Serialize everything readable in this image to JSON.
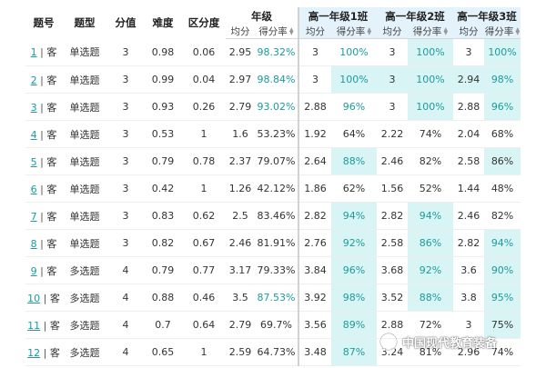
{
  "header": {
    "question_no": "题号",
    "question_type": "题型",
    "score": "分值",
    "difficulty": "难度",
    "discrimination": "区分度",
    "grade": "年级",
    "class1": "高一年级1班",
    "class2": "高一年级2班",
    "class3": "高一年级3班",
    "avg": "均分",
    "rate": "得分率"
  },
  "rows": [
    {
      "no": "1",
      "tag": "客",
      "type": "单选题",
      "score": "3",
      "difficulty": "0.98",
      "disc": "0.06",
      "g_avg": "2.95",
      "g_rate": "98.32%",
      "c1_avg": "3",
      "c1_rate": "100%",
      "c2_avg": "3",
      "c2_rate": "100%",
      "c3_avg": "3",
      "c3_rate": "100%"
    },
    {
      "no": "2",
      "tag": "客",
      "type": "单选题",
      "score": "3",
      "difficulty": "0.99",
      "disc": "0.04",
      "g_avg": "2.97",
      "g_rate": "98.84%",
      "c1_avg": "3",
      "c1_rate": "100%",
      "c2_avg": "3",
      "c2_rate": "100%",
      "c3_avg": "2.94",
      "c3_rate": "98%"
    },
    {
      "no": "3",
      "tag": "客",
      "type": "单选题",
      "score": "3",
      "difficulty": "0.93",
      "disc": "0.26",
      "g_avg": "2.79",
      "g_rate": "93.02%",
      "c1_avg": "2.88",
      "c1_rate": "96%",
      "c2_avg": "3",
      "c2_rate": "100%",
      "c3_avg": "2.88",
      "c3_rate": "96%"
    },
    {
      "no": "4",
      "tag": "客",
      "type": "单选题",
      "score": "3",
      "difficulty": "0.53",
      "disc": "1",
      "g_avg": "1.6",
      "g_rate": "53.23%",
      "c1_avg": "1.92",
      "c1_rate": "64%",
      "c2_avg": "2.22",
      "c2_rate": "74%",
      "c3_avg": "2.04",
      "c3_rate": "68%"
    },
    {
      "no": "5",
      "tag": "客",
      "type": "单选题",
      "score": "3",
      "difficulty": "0.79",
      "disc": "0.78",
      "g_avg": "2.37",
      "g_rate": "79.07%",
      "c1_avg": "2.64",
      "c1_rate": "88%",
      "c2_avg": "2.46",
      "c2_rate": "82%",
      "c3_avg": "2.58",
      "c3_rate": "86%"
    },
    {
      "no": "6",
      "tag": "客",
      "type": "单选题",
      "score": "3",
      "difficulty": "0.42",
      "disc": "1",
      "g_avg": "1.26",
      "g_rate": "42.12%",
      "c1_avg": "1.86",
      "c1_rate": "62%",
      "c2_avg": "1.56",
      "c2_rate": "52%",
      "c3_avg": "1.44",
      "c3_rate": "48%"
    },
    {
      "no": "7",
      "tag": "客",
      "type": "单选题",
      "score": "3",
      "difficulty": "0.83",
      "disc": "0.62",
      "g_avg": "2.5",
      "g_rate": "83.46%",
      "c1_avg": "2.82",
      "c1_rate": "94%",
      "c2_avg": "2.82",
      "c2_rate": "94%",
      "c3_avg": "2.46",
      "c3_rate": "82%"
    },
    {
      "no": "8",
      "tag": "客",
      "type": "单选题",
      "score": "3",
      "difficulty": "0.82",
      "disc": "0.67",
      "g_avg": "2.46",
      "g_rate": "81.91%",
      "c1_avg": "2.76",
      "c1_rate": "92%",
      "c2_avg": "2.58",
      "c2_rate": "86%",
      "c3_avg": "2.82",
      "c3_rate": "94%"
    },
    {
      "no": "9",
      "tag": "客",
      "type": "多选题",
      "score": "4",
      "difficulty": "0.79",
      "disc": "0.77",
      "g_avg": "3.17",
      "g_rate": "79.33%",
      "c1_avg": "3.84",
      "c1_rate": "96%",
      "c2_avg": "3.68",
      "c2_rate": "92%",
      "c3_avg": "3.6",
      "c3_rate": "90%"
    },
    {
      "no": "10",
      "tag": "客",
      "type": "多选题",
      "score": "4",
      "difficulty": "0.88",
      "disc": "0.46",
      "g_avg": "3.5",
      "g_rate": "87.53%",
      "c1_avg": "3.92",
      "c1_rate": "98%",
      "c2_avg": "3.52",
      "c2_rate": "88%",
      "c3_avg": "3.8",
      "c3_rate": "95%"
    },
    {
      "no": "11",
      "tag": "客",
      "type": "多选题",
      "score": "4",
      "difficulty": "0.7",
      "disc": "0.64",
      "g_avg": "2.79",
      "g_rate": "69.7%",
      "c1_avg": "3.56",
      "c1_rate": "89%",
      "c2_avg": "2.88",
      "c2_rate": "72%",
      "c3_avg": "3",
      "c3_rate": "75%"
    },
    {
      "no": "12",
      "tag": "客",
      "type": "多选题",
      "score": "4",
      "difficulty": "0.65",
      "disc": "1",
      "g_avg": "2.59",
      "g_rate": "64.73%",
      "c1_avg": "3.48",
      "c1_rate": "87%",
      "c2_avg": "3.24",
      "c2_rate": "81%",
      "c3_avg": "2.96",
      "c3_rate": "74%"
    }
  ],
  "highlight": {
    "c1_rate": [
      false,
      true,
      false,
      false,
      true,
      false,
      true,
      true,
      true,
      true,
      true,
      true
    ],
    "c2_avg": [
      false,
      true,
      false,
      false,
      false,
      false,
      false,
      false,
      false,
      false,
      false,
      false
    ],
    "c2_rate": [
      true,
      true,
      true,
      false,
      false,
      false,
      true,
      true,
      true,
      true,
      false,
      false
    ],
    "c3_avg": [
      false,
      true,
      false,
      false,
      false,
      false,
      false,
      false,
      false,
      false,
      false,
      false
    ],
    "c3_rate": [
      true,
      true,
      true,
      false,
      true,
      false,
      false,
      true,
      true,
      true,
      true,
      false
    ]
  },
  "teal": {
    "g_rate": [
      true,
      true,
      true,
      false,
      false,
      false,
      false,
      false,
      false,
      true,
      false,
      false
    ],
    "c1_rate": [
      true,
      true,
      true,
      false,
      true,
      false,
      true,
      true,
      true,
      true,
      true,
      true
    ],
    "c2_rate": [
      true,
      true,
      true,
      false,
      false,
      false,
      true,
      true,
      true,
      true,
      false,
      false
    ],
    "c3_rate": [
      true,
      true,
      true,
      false,
      false,
      false,
      false,
      true,
      true,
      true,
      false,
      false
    ]
  },
  "watermark": {
    "text": "中国现代教育装备",
    "icon": "wechat-official-account-icon"
  },
  "colors": {
    "teal": "#1a9c9c",
    "highlight": "#d9f4f4"
  }
}
